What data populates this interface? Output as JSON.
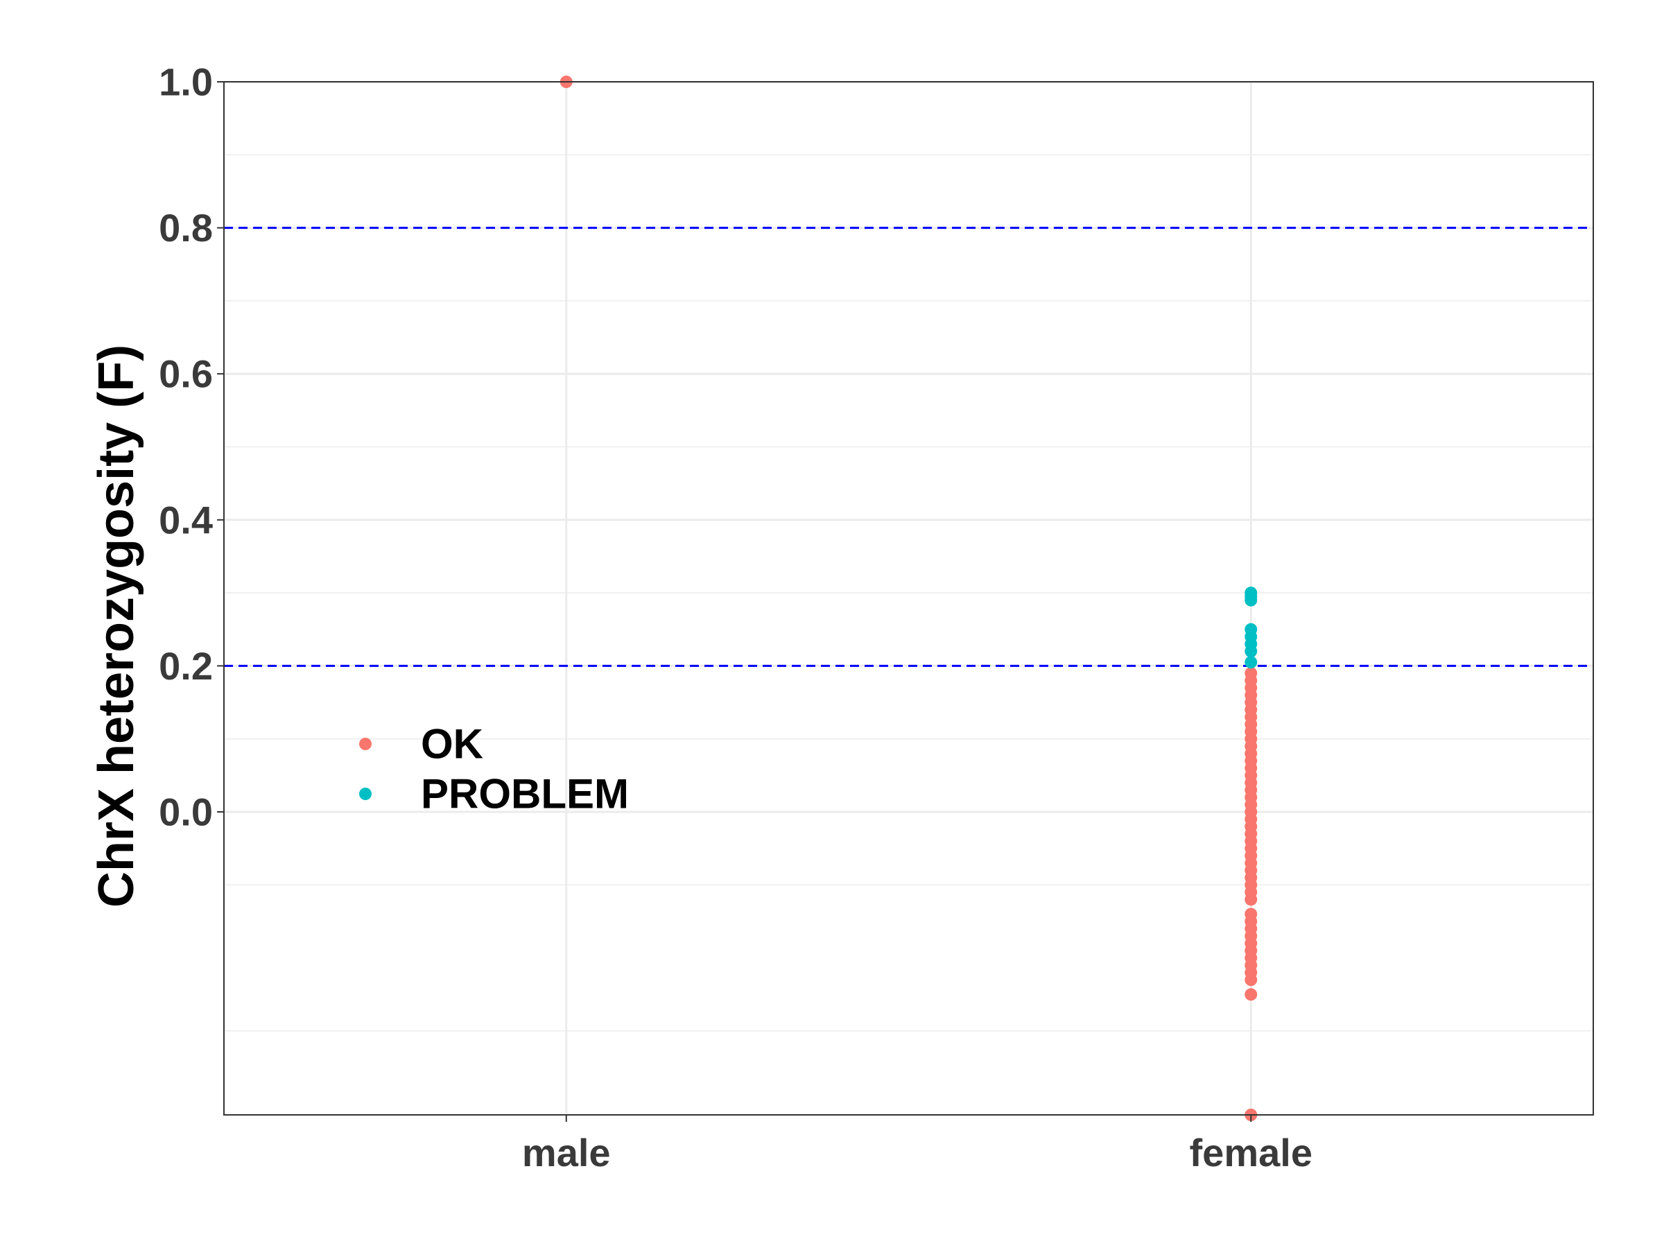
{
  "chart_data": {
    "type": "scatter",
    "title": "",
    "xlabel": "",
    "ylabel": "ChrX heterozygosity (F)",
    "categories": [
      "male",
      "female"
    ],
    "ylim": [
      -0.415,
      1.0
    ],
    "yticks": [
      0.0,
      0.2,
      0.4,
      0.6,
      0.8,
      1.0
    ],
    "ytick_labels": [
      "0.0",
      "0.2",
      "0.4",
      "0.6",
      "0.8",
      "1.0"
    ],
    "grid": true,
    "legend_position": "inside-left",
    "threshold_lines": [
      {
        "y": 0.8,
        "color": "#0000ff",
        "style": "dashed"
      },
      {
        "y": 0.2,
        "color": "#0000ff",
        "style": "dashed"
      }
    ],
    "series": [
      {
        "name": "OK",
        "color": "#f8766d",
        "points": [
          {
            "x": "male",
            "y": 1.0
          },
          {
            "x": "female",
            "y": 0.19
          },
          {
            "x": "female",
            "y": 0.18
          },
          {
            "x": "female",
            "y": 0.17
          },
          {
            "x": "female",
            "y": 0.16
          },
          {
            "x": "female",
            "y": 0.15
          },
          {
            "x": "female",
            "y": 0.14
          },
          {
            "x": "female",
            "y": 0.13
          },
          {
            "x": "female",
            "y": 0.12
          },
          {
            "x": "female",
            "y": 0.11
          },
          {
            "x": "female",
            "y": 0.1
          },
          {
            "x": "female",
            "y": 0.09
          },
          {
            "x": "female",
            "y": 0.08
          },
          {
            "x": "female",
            "y": 0.07
          },
          {
            "x": "female",
            "y": 0.06
          },
          {
            "x": "female",
            "y": 0.05
          },
          {
            "x": "female",
            "y": 0.04
          },
          {
            "x": "female",
            "y": 0.03
          },
          {
            "x": "female",
            "y": 0.02
          },
          {
            "x": "female",
            "y": 0.01
          },
          {
            "x": "female",
            "y": 0.0
          },
          {
            "x": "female",
            "y": -0.01
          },
          {
            "x": "female",
            "y": -0.02
          },
          {
            "x": "female",
            "y": -0.03
          },
          {
            "x": "female",
            "y": -0.04
          },
          {
            "x": "female",
            "y": -0.05
          },
          {
            "x": "female",
            "y": -0.06
          },
          {
            "x": "female",
            "y": -0.07
          },
          {
            "x": "female",
            "y": -0.08
          },
          {
            "x": "female",
            "y": -0.09
          },
          {
            "x": "female",
            "y": -0.1
          },
          {
            "x": "female",
            "y": -0.11
          },
          {
            "x": "female",
            "y": -0.12
          },
          {
            "x": "female",
            "y": -0.14
          },
          {
            "x": "female",
            "y": -0.15
          },
          {
            "x": "female",
            "y": -0.16
          },
          {
            "x": "female",
            "y": -0.17
          },
          {
            "x": "female",
            "y": -0.18
          },
          {
            "x": "female",
            "y": -0.19
          },
          {
            "x": "female",
            "y": -0.2
          },
          {
            "x": "female",
            "y": -0.21
          },
          {
            "x": "female",
            "y": -0.22
          },
          {
            "x": "female",
            "y": -0.23
          },
          {
            "x": "female",
            "y": -0.25
          },
          {
            "x": "female",
            "y": -0.415
          }
        ]
      },
      {
        "name": "PROBLEM",
        "color": "#00bfc4",
        "points": [
          {
            "x": "female",
            "y": 0.3
          },
          {
            "x": "female",
            "y": 0.295
          },
          {
            "x": "female",
            "y": 0.29
          },
          {
            "x": "female",
            "y": 0.25
          },
          {
            "x": "female",
            "y": 0.24
          },
          {
            "x": "female",
            "y": 0.23
          },
          {
            "x": "female",
            "y": 0.22
          },
          {
            "x": "female",
            "y": 0.205
          }
        ]
      }
    ]
  }
}
